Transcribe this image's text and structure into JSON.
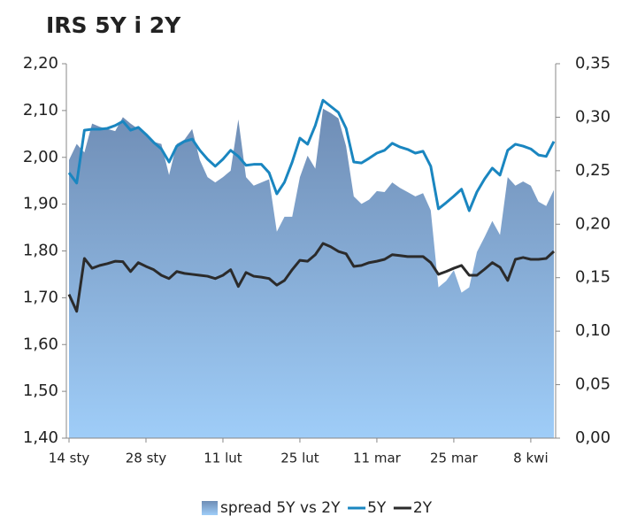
{
  "chart_data": {
    "type": "area-line",
    "title": "IRS 5Y i 2Y",
    "categories": [
      "14 sty",
      null,
      null,
      null,
      null,
      null,
      null,
      null,
      null,
      null,
      "28 sty",
      null,
      null,
      null,
      null,
      null,
      null,
      null,
      null,
      null,
      "11 lut",
      null,
      null,
      null,
      null,
      null,
      null,
      null,
      null,
      null,
      "25 lut",
      null,
      null,
      null,
      null,
      null,
      null,
      null,
      null,
      null,
      "11 mar",
      null,
      null,
      null,
      null,
      null,
      null,
      null,
      null,
      null,
      "25 mar",
      null,
      null,
      null,
      null,
      null,
      null,
      null,
      null,
      null,
      "8 kwi",
      null,
      null,
      null
    ],
    "series": [
      {
        "name": "spread 5Y vs 2Y",
        "type": "area",
        "axis": "y2",
        "color": "#7c9cc4",
        "values": [
          0.26,
          0.275,
          0.267,
          0.294,
          0.291,
          0.289,
          0.287,
          0.3,
          0.294,
          0.289,
          0.283,
          0.277,
          0.275,
          0.246,
          0.275,
          0.279,
          0.289,
          0.26,
          0.244,
          0.239,
          0.244,
          0.25,
          0.298,
          0.244,
          0.236,
          0.239,
          0.242,
          0.193,
          0.207,
          0.207,
          0.244,
          0.264,
          0.252,
          0.308,
          0.304,
          0.299,
          0.273,
          0.226,
          0.219,
          0.223,
          0.231,
          0.23,
          0.239,
          0.234,
          0.23,
          0.226,
          0.229,
          0.213,
          0.141,
          0.147,
          0.157,
          0.136,
          0.141,
          0.174,
          0.188,
          0.203,
          0.19,
          0.244,
          0.236,
          0.24,
          0.236,
          0.221,
          0.217,
          0.232
        ]
      },
      {
        "name": "5Y",
        "type": "line",
        "axis": "y",
        "color": "#1a86c0",
        "values": [
          1.967,
          1.945,
          2.058,
          2.06,
          2.06,
          2.062,
          2.068,
          2.077,
          2.058,
          2.064,
          2.049,
          2.032,
          2.018,
          1.99,
          2.024,
          2.034,
          2.039,
          2.015,
          1.996,
          1.981,
          1.996,
          2.015,
          2.002,
          1.983,
          1.985,
          1.985,
          1.967,
          1.922,
          1.947,
          1.99,
          2.041,
          2.028,
          2.068,
          2.122,
          2.109,
          2.096,
          2.062,
          1.99,
          1.988,
          1.998,
          2.009,
          2.015,
          2.03,
          2.022,
          2.017,
          2.009,
          2.013,
          1.981,
          1.89,
          1.903,
          1.917,
          1.932,
          1.886,
          1.926,
          1.954,
          1.977,
          1.962,
          2.015,
          2.028,
          2.024,
          2.018,
          2.005,
          2.002,
          2.034
        ]
      },
      {
        "name": "2Y",
        "type": "line",
        "axis": "y",
        "color": "#2b2b2b",
        "values": [
          1.707,
          1.671,
          1.784,
          1.763,
          1.769,
          1.773,
          1.778,
          1.777,
          1.756,
          1.775,
          1.767,
          1.76,
          1.748,
          1.741,
          1.756,
          1.752,
          1.75,
          1.748,
          1.746,
          1.741,
          1.748,
          1.76,
          1.724,
          1.754,
          1.746,
          1.744,
          1.741,
          1.727,
          1.737,
          1.76,
          1.78,
          1.778,
          1.792,
          1.816,
          1.809,
          1.799,
          1.794,
          1.767,
          1.769,
          1.775,
          1.778,
          1.782,
          1.792,
          1.79,
          1.788,
          1.788,
          1.788,
          1.775,
          1.75,
          1.756,
          1.763,
          1.769,
          1.748,
          1.748,
          1.761,
          1.775,
          1.765,
          1.737,
          1.782,
          1.786,
          1.782,
          1.782,
          1.784,
          1.799
        ]
      }
    ],
    "ylim": [
      1.4,
      2.2
    ],
    "yticks": [
      {
        "value": 1.4,
        "label": "1,40"
      },
      {
        "value": 1.5,
        "label": "1,50"
      },
      {
        "value": 1.6,
        "label": "1,60"
      },
      {
        "value": 1.7,
        "label": "1,70"
      },
      {
        "value": 1.8,
        "label": "1,80"
      },
      {
        "value": 1.9,
        "label": "1,90"
      },
      {
        "value": 2.0,
        "label": "2,00"
      },
      {
        "value": 2.1,
        "label": "2,10"
      },
      {
        "value": 2.2,
        "label": "2,20"
      }
    ],
    "y2lim": [
      0,
      0.35
    ],
    "y2ticks": [
      {
        "value": 0,
        "label": "0,00"
      },
      {
        "value": 0.05,
        "label": "0,05"
      },
      {
        "value": 0.1,
        "label": "0,10"
      },
      {
        "value": 0.15,
        "label": "0,15"
      },
      {
        "value": 0.2,
        "label": "0,20"
      },
      {
        "value": 0.25,
        "label": "0,25"
      },
      {
        "value": 0.3,
        "label": "0,30"
      },
      {
        "value": 0.35,
        "label": "0,35"
      }
    ],
    "legend": "bottom"
  }
}
